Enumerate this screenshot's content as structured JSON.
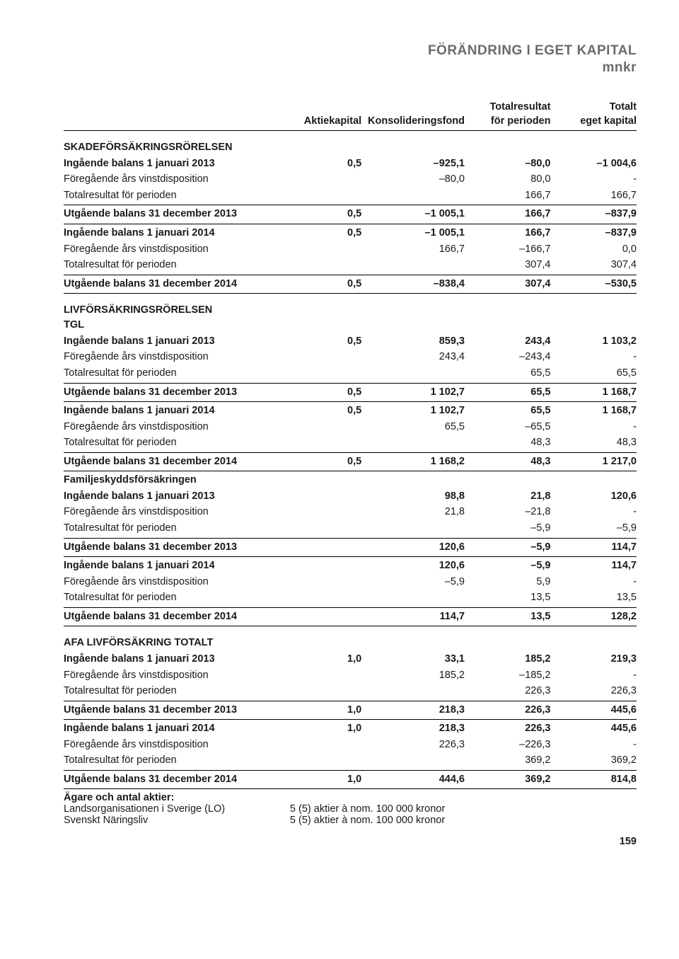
{
  "title_line1": "FÖRÄNDRING I EGET KAPITAL",
  "title_line2": "mnkr",
  "headers": {
    "c0": "",
    "c1": "Aktiekapital",
    "c2": "Konsolideringsfond",
    "c3a": "Totalresultat",
    "c3b": "för perioden",
    "c4a": "Totalt",
    "c4b": "eget kapital"
  },
  "rows": [
    {
      "cls": "sect",
      "c": [
        "SKADEFÖRSÄKRINGSRÖRELSEN",
        "",
        "",
        "",
        ""
      ]
    },
    {
      "cls": "bold",
      "c": [
        "Ingående balans 1 januari 2013",
        "0,5",
        "–925,1",
        "–80,0",
        "–1 004,6"
      ]
    },
    {
      "c": [
        "Föregående års vinstdisposition",
        "",
        "–80,0",
        "80,0",
        "-"
      ]
    },
    {
      "cls": "line-b",
      "c": [
        "Totalresultat för perioden",
        "",
        "",
        "166,7",
        "166,7"
      ]
    },
    {
      "cls": "bold line-b after-line",
      "c": [
        "Utgående balans 31 december 2013",
        "0,5",
        "–1 005,1",
        "166,7",
        "–837,9"
      ]
    },
    {
      "cls": "bold after-line",
      "c": [
        "Ingående balans 1 januari 2014",
        "0,5",
        "–1 005,1",
        "166,7",
        "–837,9"
      ]
    },
    {
      "c": [
        "Föregående års vinstdisposition",
        "",
        "166,7",
        "–166,7",
        "0,0"
      ]
    },
    {
      "cls": "line-b",
      "c": [
        "Totalresultat för perioden",
        "",
        "",
        "307,4",
        "307,4"
      ]
    },
    {
      "cls": "bold line-b after-line",
      "c": [
        "Utgående balans 31 december 2014",
        "0,5",
        "–838,4",
        "307,4",
        "–530,5"
      ]
    },
    {
      "cls": "sect",
      "c": [
        "LIVFÖRSÄKRINGSRÖRELSEN",
        "",
        "",
        "",
        ""
      ]
    },
    {
      "cls": "sect-tight",
      "c": [
        "TGL",
        "",
        "",
        "",
        ""
      ]
    },
    {
      "cls": "bold",
      "c": [
        "Ingående balans 1 januari 2013",
        "0,5",
        "859,3",
        "243,4",
        "1 103,2"
      ]
    },
    {
      "c": [
        "Föregående års vinstdisposition",
        "",
        "243,4",
        "–243,4",
        "-"
      ]
    },
    {
      "cls": "line-b",
      "c": [
        "Totalresultat för perioden",
        "",
        "",
        "65,5",
        "65,5"
      ]
    },
    {
      "cls": "bold line-b after-line",
      "c": [
        "Utgående balans 31 december 2013",
        "0,5",
        "1 102,7",
        "65,5",
        "1 168,7"
      ]
    },
    {
      "cls": "bold after-line",
      "c": [
        "Ingående balans 1 januari 2014",
        "0,5",
        "1 102,7",
        "65,5",
        "1 168,7"
      ]
    },
    {
      "c": [
        "Föregående års vinstdisposition",
        "",
        "65,5",
        "–65,5",
        "-"
      ]
    },
    {
      "cls": "line-b",
      "c": [
        "Totalresultat för perioden",
        "",
        "",
        "48,3",
        "48,3"
      ]
    },
    {
      "cls": "bold line-b after-line",
      "c": [
        "Utgående balans 31 december 2014",
        "0,5",
        "1 168,2",
        "48,3",
        "1 217,0"
      ]
    },
    {
      "cls": "bold after-line",
      "c": [
        "Familjeskyddsförsäkringen",
        "",
        "",
        "",
        ""
      ]
    },
    {
      "cls": "bold",
      "c": [
        "Ingående balans 1 januari 2013",
        "",
        "98,8",
        "21,8",
        "120,6"
      ]
    },
    {
      "c": [
        "Föregående års vinstdisposition",
        "",
        "21,8",
        "–21,8",
        "-"
      ]
    },
    {
      "cls": "line-b",
      "c": [
        "Totalresultat för perioden",
        "",
        "",
        "–5,9",
        "–5,9"
      ]
    },
    {
      "cls": "bold line-b after-line",
      "c": [
        "Utgående balans 31 december 2013",
        "",
        "120,6",
        "–5,9",
        "114,7"
      ]
    },
    {
      "cls": "bold after-line",
      "c": [
        "Ingående balans 1 januari 2014",
        "",
        "120,6",
        "–5,9",
        "114,7"
      ]
    },
    {
      "c": [
        "Föregående års vinstdisposition",
        "",
        "–5,9",
        "5,9",
        "-"
      ]
    },
    {
      "cls": "line-b",
      "c": [
        "Totalresultat för perioden",
        "",
        "",
        "13,5",
        "13,5"
      ]
    },
    {
      "cls": "bold line-b after-line",
      "c": [
        "Utgående balans 31 december 2014",
        "",
        "114,7",
        "13,5",
        "128,2"
      ]
    },
    {
      "cls": "sect",
      "c": [
        "AFA LIVFÖRSÄKRING TOTALT",
        "",
        "",
        "",
        ""
      ]
    },
    {
      "cls": "bold",
      "c": [
        "Ingående balans 1 januari 2013",
        "1,0",
        "33,1",
        "185,2",
        "219,3"
      ]
    },
    {
      "c": [
        "Föregående års vinstdisposition",
        "",
        "185,2",
        "–185,2",
        "-"
      ]
    },
    {
      "cls": "line-b",
      "c": [
        "Totalresultat för perioden",
        "",
        "",
        "226,3",
        "226,3"
      ]
    },
    {
      "cls": "bold line-b after-line",
      "c": [
        "Utgående balans 31 december 2013",
        "1,0",
        "218,3",
        "226,3",
        "445,6"
      ]
    },
    {
      "cls": "bold after-line",
      "c": [
        "Ingående balans 1 januari 2014",
        "1,0",
        "218,3",
        "226,3",
        "445,6"
      ]
    },
    {
      "c": [
        "Föregående års vinstdisposition",
        "",
        "226,3",
        "–226,3",
        "-"
      ]
    },
    {
      "cls": "line-b",
      "c": [
        "Totalresultat för perioden",
        "",
        "",
        "369,2",
        "369,2"
      ]
    },
    {
      "cls": "bold line-b after-line",
      "c": [
        "Utgående balans 31 december 2014",
        "1,0",
        "444,6",
        "369,2",
        "814,8"
      ]
    }
  ],
  "owners": {
    "heading": "Ägare och antal aktier:",
    "lo_label": "Landsorganisationen i Sverige (LO)",
    "lo_value": "5 (5) aktier à nom. 100 000 kronor",
    "sn_label": "Svenskt Näringsliv",
    "sn_value": "5 (5) aktier à nom. 100 000 kronor"
  },
  "page_number": "159"
}
